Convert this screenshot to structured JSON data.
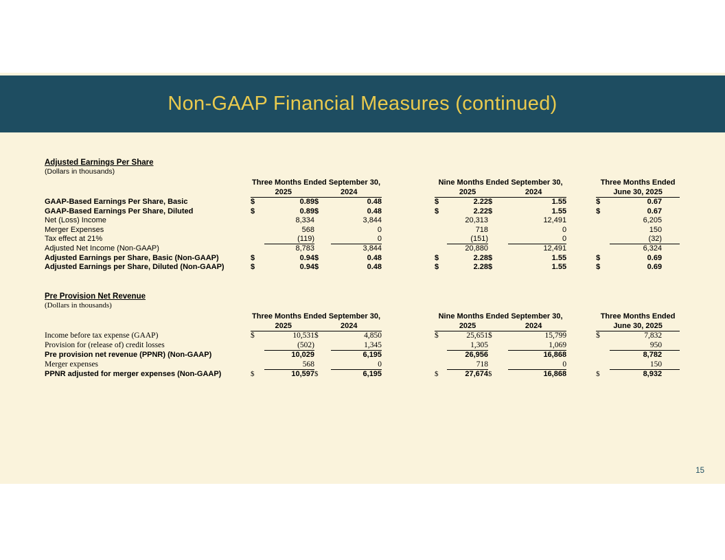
{
  "slide": {
    "title": "Non-GAAP Financial Measures (continued)",
    "page_number": "15",
    "colors": {
      "band_teal": "#1e4d61",
      "title_gold": "#e9ca4e",
      "slide_background": "#faf3dc",
      "page_number": "#1f4f63",
      "text": "#000000"
    }
  },
  "tables": [
    {
      "title": "Adjusted Earnings Per Share",
      "subtitle": "(Dollars in thousands)",
      "dollar_serif": false,
      "col_groups": [
        {
          "title": "Three Months Ended September 30,",
          "years": [
            "2025",
            "2024"
          ]
        },
        {
          "title": "Nine Months Ended September 30,",
          "years": [
            "2025",
            "2024"
          ]
        },
        {
          "title": "Three Months Ended",
          "years": [
            "June 30, 2025"
          ]
        }
      ],
      "rows": [
        {
          "label": "GAAP-Based Earnings Per Share, Basic",
          "bold": true,
          "dollar": true,
          "values": [
            "0.89",
            "0.48",
            "2.22",
            "1.55",
            "0.67"
          ]
        },
        {
          "label": "GAAP-Based Earnings Per Share, Diluted",
          "bold": true,
          "dollar": true,
          "values": [
            "0.89",
            "0.48",
            "2.22",
            "1.55",
            "0.67"
          ]
        },
        {
          "label": "Net (Loss) Income",
          "values": [
            "8,334",
            "3,844",
            "20,313",
            "12,491",
            "6,205"
          ]
        },
        {
          "label": "Merger Expenses",
          "values": [
            "568",
            "0",
            "718",
            "0",
            "150"
          ]
        },
        {
          "label": "Tax effect at 21%",
          "underline": true,
          "values": [
            "(119)",
            "0",
            "(151)",
            "0",
            "(32)"
          ]
        },
        {
          "label": "Adjusted Net Income (Non-GAAP)",
          "values": [
            "8,783",
            "3,844",
            "20,880",
            "12,491",
            "6,324"
          ]
        },
        {
          "label": "Adjusted Earnings per Share, Basic (Non-GAAP)",
          "bold": true,
          "dollar": true,
          "values": [
            "0.94",
            "0.48",
            "2.28",
            "1.55",
            "0.69"
          ]
        },
        {
          "label": "Adjusted Earnings per Share, Diluted (Non-GAAP)",
          "bold": true,
          "dollar": true,
          "values": [
            "0.94",
            "0.48",
            "2.28",
            "1.55",
            "0.69"
          ]
        }
      ]
    },
    {
      "title": "Pre Provision Net Revenue",
      "subtitle": "(Dollars in thousands)",
      "dollar_serif": true,
      "col_groups": [
        {
          "title": "Three Months Ended September 30,",
          "years": [
            "2025",
            "2024"
          ]
        },
        {
          "title": "Nine Months Ended September 30,",
          "years": [
            "2025",
            "2024"
          ]
        },
        {
          "title": "Three Months Ended",
          "years": [
            "June 30, 2025"
          ]
        }
      ],
      "rows": [
        {
          "label": "Income before tax expense (GAAP)",
          "serif": true,
          "dollar": true,
          "values": [
            "10,531",
            "4,850",
            "25,651",
            "15,799",
            "7,832"
          ]
        },
        {
          "label": "Provision for (release of) credit losses",
          "serif": true,
          "underline": true,
          "values": [
            "(502)",
            "1,345",
            "1,305",
            "1,069",
            "950"
          ]
        },
        {
          "label": "Pre provision net revenue (PPNR) (Non-GAAP)",
          "bold": true,
          "values": [
            "10,029",
            "6,195",
            "26,956",
            "16,868",
            "8,782"
          ]
        },
        {
          "label": "Merger expenses",
          "serif": true,
          "underline": true,
          "values": [
            "568",
            "0",
            "718",
            "0",
            "150"
          ]
        },
        {
          "label": "PPNR adjusted for merger expenses (Non-GAAP)",
          "bold": true,
          "dollar": true,
          "values": [
            "10,597",
            "6,195",
            "27,674",
            "16,868",
            "8,932"
          ]
        }
      ]
    }
  ]
}
